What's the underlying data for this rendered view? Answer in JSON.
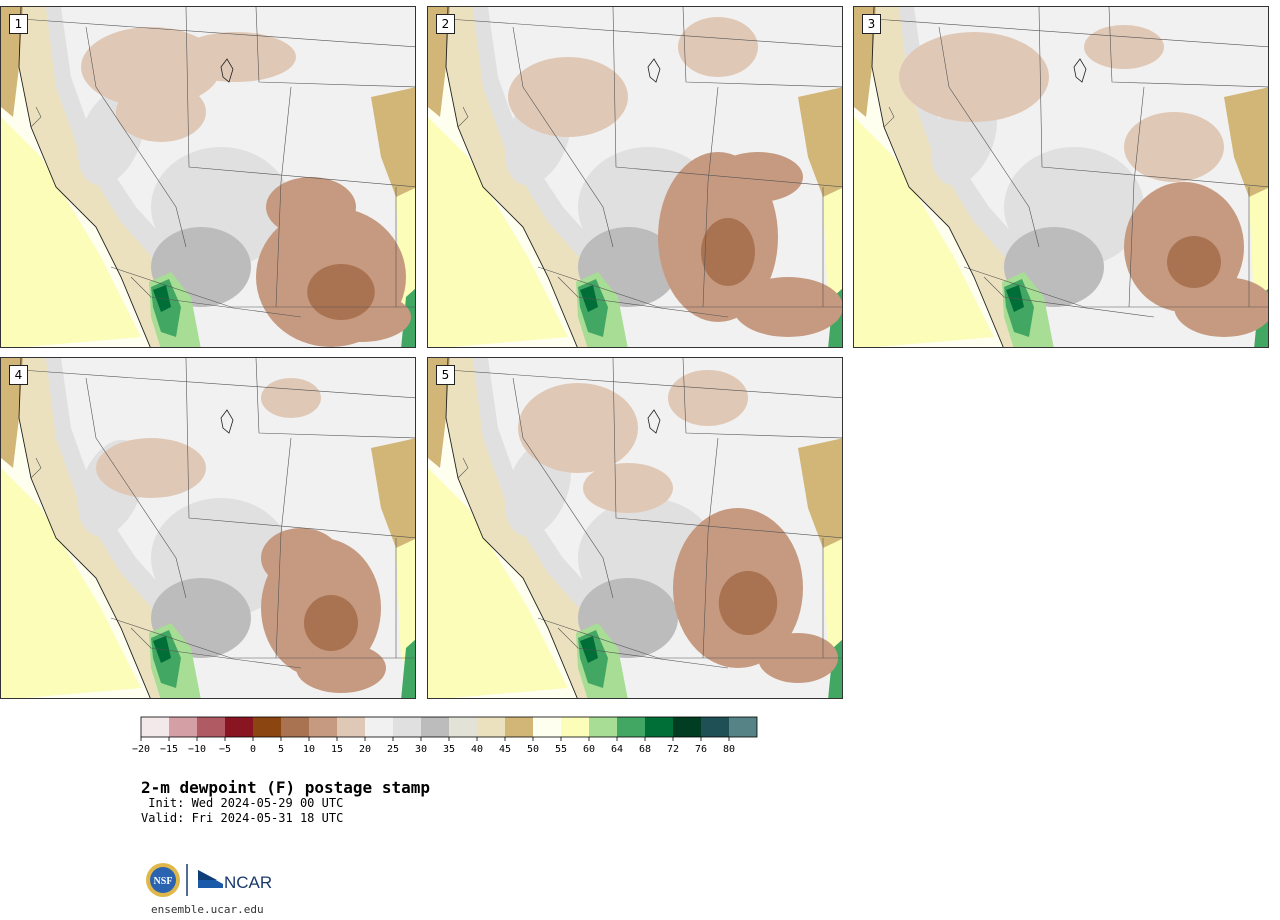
{
  "panels": [
    {
      "label": "1"
    },
    {
      "label": "2"
    },
    {
      "label": "3"
    },
    {
      "label": "4"
    },
    {
      "label": "5"
    }
  ],
  "colorbar": {
    "ticks": [
      "−20",
      "−15",
      "−10",
      "−5",
      "0",
      "5",
      "10",
      "15",
      "20",
      "25",
      "30",
      "35",
      "40",
      "45",
      "50",
      "55",
      "60",
      "64",
      "68",
      "72",
      "76",
      "80"
    ],
    "colors": [
      "#f3e9ea",
      "#d4a0a6",
      "#b05b63",
      "#8a1522",
      "#8b4510",
      "#a97352",
      "#c69a80",
      "#e0c8b6",
      "#f1f1f1",
      "#e0e0e0",
      "#bcbcbc",
      "#e2e2d6",
      "#ebe1be",
      "#d2b677",
      "#fffff0",
      "#fbfdb8",
      "#a7dd94",
      "#43a764",
      "#006e37",
      "#003d22",
      "#1f5055",
      "#568486"
    ]
  },
  "title": "2-m dewpoint (F) postage stamp",
  "init": " Init: Wed 2024-05-29 00 UTC",
  "valid": "Valid: Fri 2024-05-31 18 UTC",
  "logo": {
    "left_text": "NSF",
    "right_text": "NCAR"
  },
  "url": "ensemble.ucar.edu"
}
